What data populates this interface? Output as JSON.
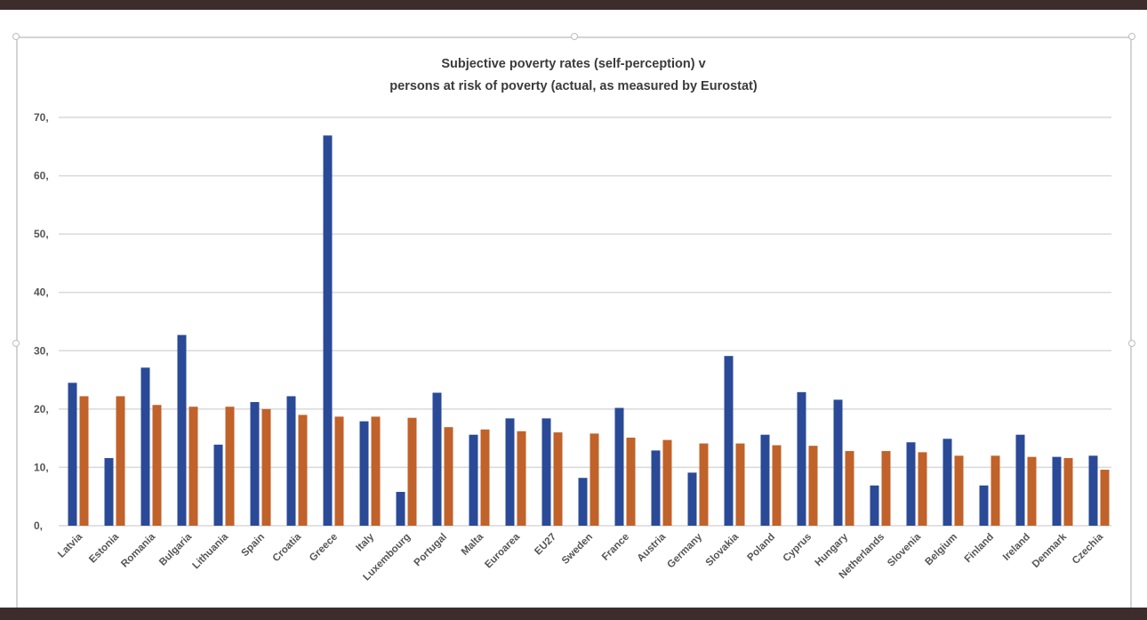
{
  "chart_data": {
    "type": "bar",
    "title_line1": "Subjective poverty rates (self-perception) v",
    "title_line2": "persons at risk of poverty (actual, as measured by Eurostat)",
    "xlabel": "",
    "ylabel": "",
    "ylim": [
      0,
      70
    ],
    "yticks": [
      0,
      10,
      20,
      30,
      40,
      50,
      60,
      70
    ],
    "ytick_labels": [
      "0,",
      "10,",
      "20,",
      "30,",
      "40,",
      "50,",
      "60,",
      "70,"
    ],
    "grid": true,
    "legend": "none",
    "categories": [
      "Latvia",
      "Estonia",
      "Romania",
      "Bulgaria",
      "Lithuania",
      "Spain",
      "Croatia",
      "Greece",
      "Italy",
      "Luxembourg",
      "Portugal",
      "Malta",
      "Euroarea",
      "EU27",
      "Sweden",
      "France",
      "Austria",
      "Germany",
      "Slovakia",
      "Poland",
      "Cyprus",
      "Hungary",
      "Netherlands",
      "Slovenia",
      "Belgium",
      "Finland",
      "Ireland",
      "Denmark",
      "Czechia"
    ],
    "series": [
      {
        "name": "Subjective poverty rate (self-perception)",
        "color": "#2a4a97",
        "values": [
          24.5,
          11.6,
          27.1,
          32.7,
          13.9,
          21.2,
          22.2,
          66.9,
          17.9,
          5.8,
          22.8,
          15.6,
          18.4,
          18.4,
          8.2,
          20.2,
          12.9,
          9.1,
          29.1,
          15.6,
          22.9,
          21.6,
          6.9,
          14.3,
          14.9,
          6.9,
          15.6,
          11.8,
          12.0
        ]
      },
      {
        "name": "At risk of poverty (Eurostat)",
        "color": "#c0622a",
        "values": [
          22.2,
          22.2,
          20.7,
          20.4,
          20.4,
          20.0,
          19.0,
          18.7,
          18.7,
          18.5,
          16.9,
          16.5,
          16.2,
          16.0,
          15.8,
          15.1,
          14.7,
          14.1,
          14.1,
          13.8,
          13.7,
          12.8,
          12.8,
          12.6,
          12.0,
          12.0,
          11.8,
          11.6,
          9.6
        ]
      }
    ]
  }
}
